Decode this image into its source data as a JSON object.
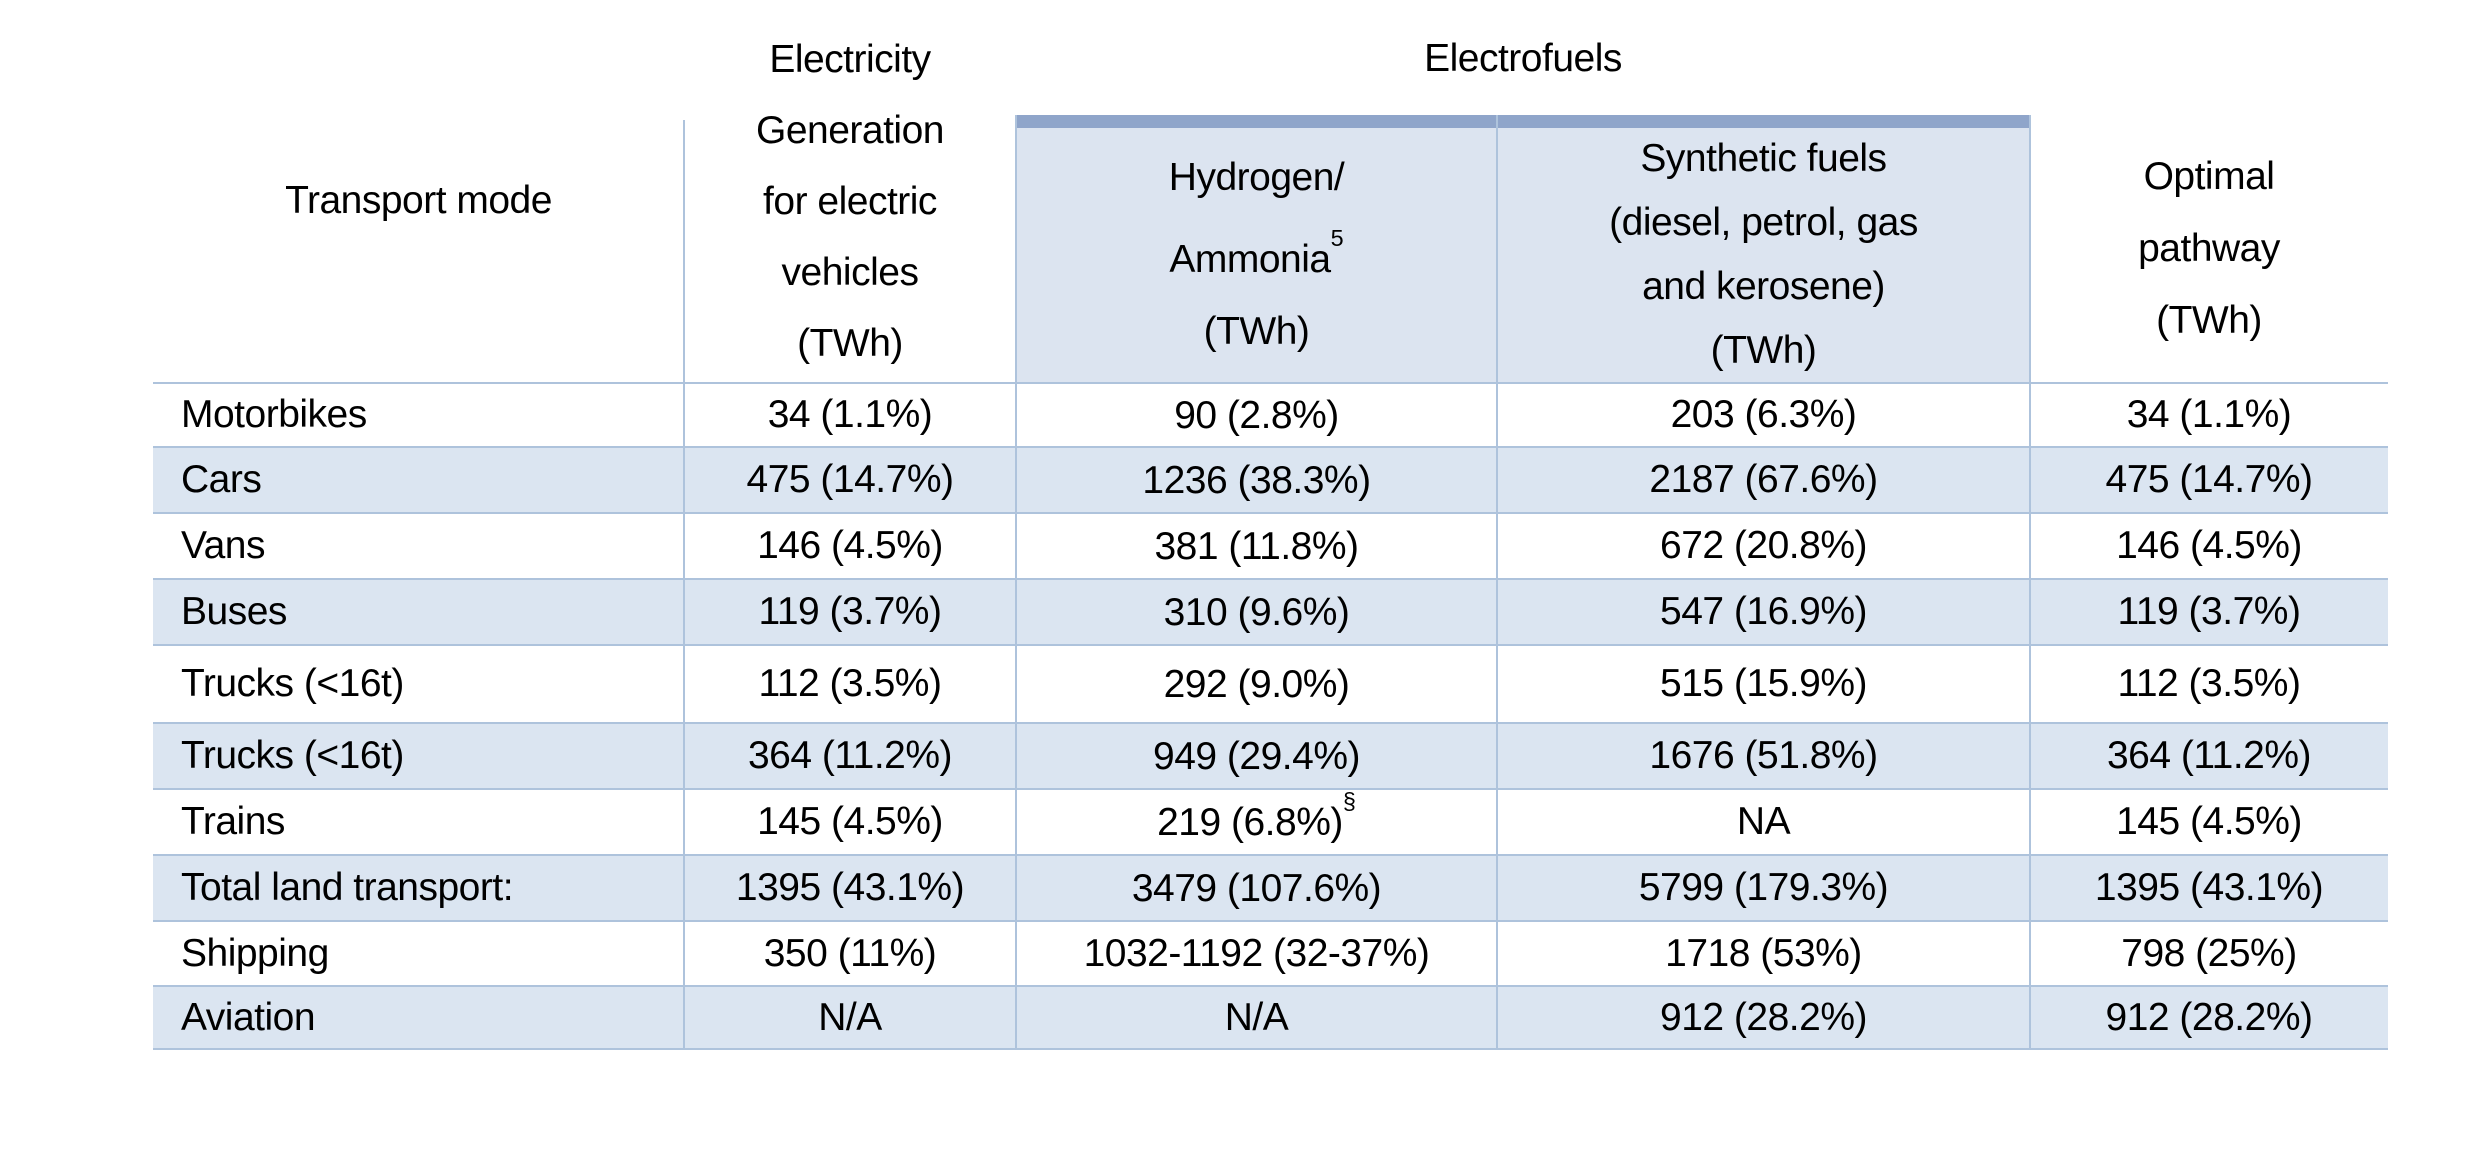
{
  "colors": {
    "accent_bar": "#8fa5ca",
    "subheader_fill": "#dce4f0",
    "stripe": "#dbe5f1",
    "grid_line": "#aec3dc",
    "text": "#000000"
  },
  "table": {
    "group_header": "Electrofuels",
    "columns": [
      {
        "label": "Transport mode"
      },
      {
        "lines": [
          "Electricity",
          "Generation",
          "for electric",
          "vehicles",
          "(TWh)"
        ]
      },
      {
        "lines": [
          "Hydrogen/",
          "Ammonia",
          "(TWh)"
        ],
        "sup": "5"
      },
      {
        "lines": [
          "Synthetic fuels",
          "(diesel, petrol, gas",
          "and kerosene)",
          "(TWh)"
        ]
      },
      {
        "lines": [
          "Optimal",
          "pathway",
          "(TWh)"
        ]
      }
    ],
    "rows": [
      {
        "mode": "Motorbikes",
        "ev": "34 (1.1%)",
        "h2": "90 (2.8%)",
        "synth": "203 (6.3%)",
        "optimal": "34 (1.1%)"
      },
      {
        "mode": "Cars",
        "ev": "475 (14.7%)",
        "h2": "1236 (38.3%)",
        "synth": "2187 (67.6%)",
        "optimal": "475 (14.7%)"
      },
      {
        "mode": "Vans",
        "ev": "146 (4.5%)",
        "h2": "381 (11.8%)",
        "synth": "672 (20.8%)",
        "optimal": "146 (4.5%)"
      },
      {
        "mode": "Buses",
        "ev": "119 (3.7%)",
        "h2": "310 (9.6%)",
        "synth": "547 (16.9%)",
        "optimal": "119 (3.7%)"
      },
      {
        "mode": "Trucks (<16t)",
        "ev": "112 (3.5%)",
        "h2": "292 (9.0%)",
        "synth": "515 (15.9%)",
        "optimal": "112 (3.5%)"
      },
      {
        "mode": "Trucks (<16t)",
        "ev": "364 (11.2%)",
        "h2": "949 (29.4%)",
        "synth": "1676 (51.8%)",
        "optimal": "364 (11.2%)"
      },
      {
        "mode": "Trains",
        "ev": "145 (4.5%)",
        "h2": "219 (6.8%)",
        "h2_sup": "§",
        "synth": "NA",
        "optimal": "145 (4.5%)"
      },
      {
        "mode": "Total land transport:",
        "ev": "1395 (43.1%)",
        "h2": "3479 (107.6%)",
        "synth": "5799 (179.3%)",
        "optimal": "1395 (43.1%)"
      },
      {
        "mode": "Shipping",
        "ev": "350 (11%)",
        "h2": "1032-1192 (32-37%)",
        "synth": "1718 (53%)",
        "optimal": "798 (25%)"
      },
      {
        "mode": "Aviation",
        "ev": "N/A",
        "h2": "N/A",
        "synth": "912 (28.2%)",
        "optimal": "912 (28.2%)"
      }
    ]
  }
}
